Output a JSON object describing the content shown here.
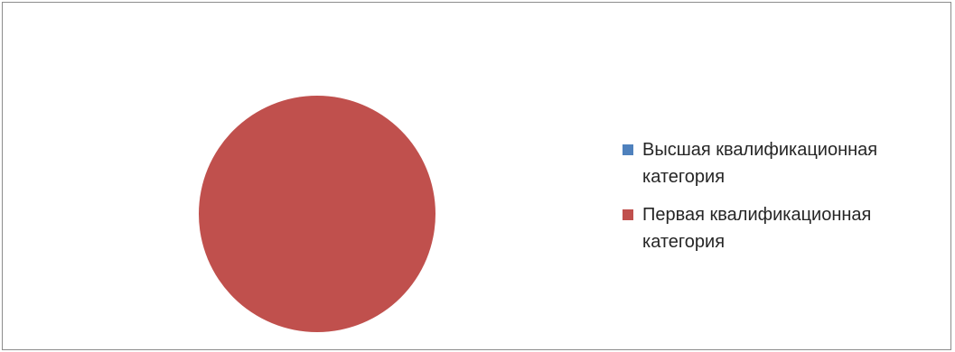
{
  "chart_data": {
    "type": "pie",
    "title": "",
    "categories": [
      "Высшая квалификационная категория",
      "Первая квалификационная категория"
    ],
    "values": [
      0,
      100
    ],
    "colors": [
      "#4f81bd",
      "#c0504d"
    ],
    "legend_position": "right"
  }
}
